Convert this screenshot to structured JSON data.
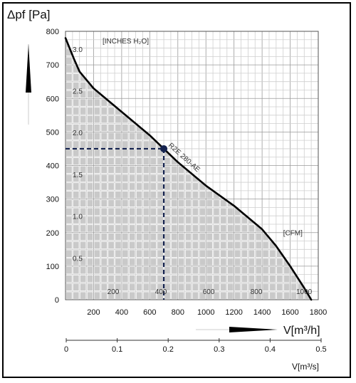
{
  "chart_data": {
    "type": "line",
    "ylabel": "Δpf [Pa]",
    "xlabel": "V[m³/h]",
    "x2label": "V[m³/s]",
    "secondary_unit_pressure": "[INCHES H₂O]",
    "secondary_unit_flow": "[CFM]",
    "xlim": [
      0,
      1800
    ],
    "ylim": [
      0,
      800
    ],
    "x_ticks": [
      "200",
      "400",
      "600",
      "800",
      "1000",
      "1200",
      "1400",
      "1600",
      "1800"
    ],
    "y_ticks": [
      "0",
      "100",
      "200",
      "300",
      "400",
      "500",
      "600",
      "700",
      "800"
    ],
    "ms_ticks": [
      {
        "label": "0",
        "value": 0
      },
      {
        "label": "0.1",
        "value": 0.1
      },
      {
        "label": "0.2",
        "value": 0.2
      },
      {
        "label": "0.3",
        "value": 0.3
      },
      {
        "label": "0.4",
        "value": 0.4
      },
      {
        "label": "0.5",
        "value": 0.5
      }
    ],
    "inh2o_ticks": [
      {
        "label": "3.0",
        "value": 3.0
      },
      {
        "label": "2.5",
        "value": 2.5
      },
      {
        "label": "2.0",
        "value": 2.0
      },
      {
        "label": "1.5",
        "value": 1.5
      },
      {
        "label": "1.0",
        "value": 1.0
      },
      {
        "label": "0.5",
        "value": 0.5
      }
    ],
    "cfm_ticks": [
      {
        "label": "200",
        "value": 200
      },
      {
        "label": "400",
        "value": 400
      },
      {
        "label": "600",
        "value": 600
      },
      {
        "label": "800",
        "value": 800
      },
      {
        "label": "1000",
        "value": 1000
      }
    ],
    "series": [
      {
        "name": "R2E 280-AE",
        "x": [
          0,
          60,
          100,
          200,
          400,
          600,
          700,
          800,
          1000,
          1200,
          1400,
          1500,
          1600,
          1700,
          1750
        ],
        "y": [
          780,
          718,
          680,
          630,
          560,
          490,
          450,
          410,
          340,
          280,
          210,
          160,
          100,
          35,
          0
        ]
      }
    ],
    "operating_point": {
      "x": 700,
      "y": 450
    },
    "grid": true,
    "shaded_area_under_curve": true
  }
}
